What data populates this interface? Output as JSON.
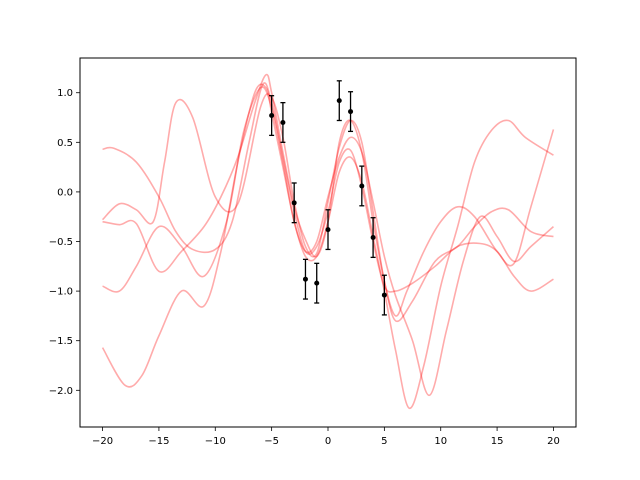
{
  "chart_data": {
    "type": "line",
    "title": "",
    "xlabel": "",
    "ylabel": "",
    "xlim": [
      -22,
      22
    ],
    "ylim": [
      -2.37,
      1.35
    ],
    "grid": false,
    "x_ticks": [
      -20,
      -15,
      -10,
      -5,
      0,
      5,
      10,
      15,
      20
    ],
    "y_ticks": [
      1.0,
      0.5,
      0.0,
      -0.5,
      -1.0,
      -1.5,
      -2.0
    ],
    "x_tick_labels": [
      "−20",
      "−15",
      "−10",
      "−5",
      "0",
      "5",
      "10",
      "15",
      "20"
    ],
    "y_tick_labels": [
      "1.0",
      "0.5",
      "0.0",
      "−0.5",
      "−1.0",
      "−1.5",
      "−2.0"
    ],
    "colors": {
      "samples": "#ff0000",
      "observations": "#000000",
      "axes": "#000000"
    },
    "sample_opacity": 0.33,
    "observations": {
      "x": [
        -5,
        -4,
        -3,
        -2,
        -1,
        0,
        1,
        2,
        3,
        4,
        5
      ],
      "y": [
        0.77,
        0.7,
        -0.11,
        -0.88,
        -0.92,
        -0.38,
        0.92,
        0.81,
        0.06,
        -0.46,
        -1.04
      ],
      "yerr": 0.2
    },
    "series": [
      {
        "x": [
          -20,
          -19,
          -17,
          -15,
          -13.5,
          -12,
          -10,
          -8.5,
          -7,
          -5.8,
          -5,
          -4,
          -3,
          -2,
          -1,
          0,
          1,
          2,
          3,
          4,
          5,
          6,
          7.5,
          9.5,
          11.5,
          13.5,
          15,
          16.5,
          18,
          20
        ],
        "values": [
          0.43,
          0.44,
          0.3,
          -0.05,
          -0.4,
          -0.58,
          -0.58,
          -0.3,
          0.5,
          1.08,
          0.9,
          0.35,
          -0.2,
          -0.6,
          -0.55,
          -0.2,
          0.3,
          0.42,
          0.05,
          -0.5,
          -0.95,
          -1.0,
          -0.92,
          -0.75,
          -0.55,
          -0.52,
          -0.6,
          -0.85,
          -1.0,
          -0.88
        ]
      },
      {
        "x": [
          -20,
          -18.5,
          -17,
          -15.5,
          -14.5,
          -13.5,
          -12,
          -10,
          -8,
          -6,
          -5,
          -4,
          -3,
          -2,
          -1,
          0,
          1,
          2,
          3,
          4,
          5,
          6,
          7,
          8.5,
          10,
          11.5,
          13,
          15,
          16.5,
          18,
          20
        ],
        "values": [
          -0.28,
          -0.12,
          -0.18,
          -0.3,
          0.3,
          0.9,
          0.75,
          -0.05,
          -0.12,
          0.85,
          0.95,
          0.55,
          -0.1,
          -0.55,
          -0.62,
          -0.1,
          0.45,
          0.72,
          0.5,
          -0.2,
          -0.9,
          -1.25,
          -1.0,
          -0.6,
          -0.3,
          -0.15,
          -0.25,
          -0.6,
          -0.72,
          -0.15,
          0.63
        ]
      },
      {
        "x": [
          -20,
          -18.5,
          -17,
          -15,
          -13,
          -11,
          -9,
          -7.5,
          -6,
          -5,
          -4,
          -3,
          -2,
          -1,
          0,
          1,
          2,
          3,
          4,
          5,
          6,
          7.5,
          9,
          10.5,
          12,
          13.5,
          15,
          16.5,
          18,
          20
        ],
        "values": [
          -0.95,
          -1.0,
          -0.75,
          -0.35,
          -0.55,
          -0.85,
          -0.3,
          0.6,
          1.05,
          0.85,
          0.3,
          -0.3,
          -0.6,
          -0.5,
          -0.05,
          0.35,
          0.55,
          0.4,
          -0.1,
          -0.65,
          -1.05,
          -1.5,
          -2.05,
          -1.4,
          -0.7,
          -0.25,
          -0.45,
          -0.7,
          -0.55,
          -0.35
        ]
      },
      {
        "x": [
          -20,
          -18.5,
          -17,
          -15,
          -13,
          -11,
          -9.5,
          -8,
          -6.5,
          -5.5,
          -5,
          -4,
          -3,
          -2,
          -1,
          0,
          1,
          2,
          3,
          4,
          5,
          6,
          7.5,
          9.5,
          11.5,
          13,
          14.5,
          16,
          18,
          20
        ],
        "values": [
          -0.3,
          -0.33,
          -0.32,
          -0.8,
          -0.6,
          -0.35,
          -0.05,
          0.35,
          0.9,
          1.18,
          1.0,
          0.4,
          -0.15,
          -0.48,
          -0.65,
          -0.3,
          0.5,
          0.72,
          0.4,
          -0.3,
          -0.9,
          -1.3,
          -1.1,
          -0.7,
          -0.55,
          -0.35,
          -0.2,
          -0.18,
          -0.4,
          -0.45
        ]
      },
      {
        "x": [
          -20,
          -18,
          -16.5,
          -15,
          -13,
          -11,
          -9.5,
          -8,
          -6.5,
          -5.5,
          -5,
          -4,
          -3,
          -2,
          -1,
          0,
          1,
          2,
          3,
          4,
          5,
          6,
          7.2,
          8.5,
          10,
          11.5,
          13,
          14.5,
          16,
          17.5,
          20
        ],
        "values": [
          -1.57,
          -1.95,
          -1.85,
          -1.45,
          -1.0,
          -1.15,
          -0.6,
          0.3,
          1.0,
          1.05,
          0.8,
          0.25,
          -0.3,
          -0.65,
          -0.65,
          -0.3,
          0.2,
          0.35,
          0.1,
          -0.45,
          -1.0,
          -1.6,
          -2.18,
          -1.75,
          -0.95,
          -0.35,
          0.3,
          0.62,
          0.72,
          0.55,
          0.37
        ]
      }
    ]
  }
}
